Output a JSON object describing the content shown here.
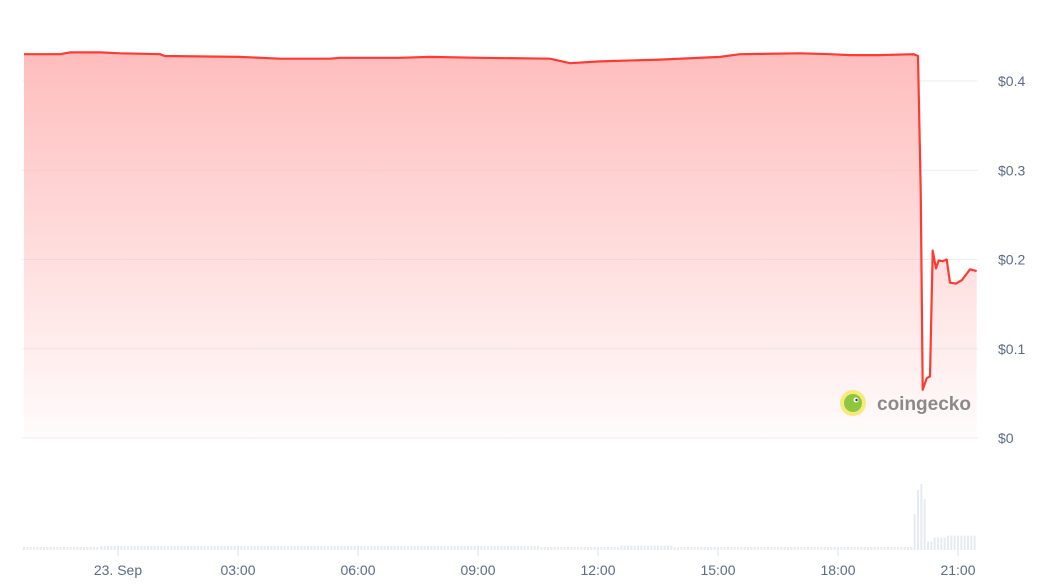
{
  "chart_data": {
    "type": "area",
    "title": "",
    "xlabel": "",
    "ylabel": "",
    "ylim": [
      0,
      0.44
    ],
    "y_ticks": [
      "$0",
      "$0.1",
      "$0.2",
      "$0.3",
      "$0.4"
    ],
    "y_tick_values": [
      0,
      0.1,
      0.2,
      0.3,
      0.4
    ],
    "x_ticks": [
      "23. Sep",
      "03:00",
      "06:00",
      "09:00",
      "12:00",
      "15:00",
      "18:00",
      "21:00"
    ],
    "x_tick_times": [
      "23 Sep 00:00",
      "23 Sep 03:00",
      "23 Sep 06:00",
      "23 Sep 09:00",
      "23 Sep 12:00",
      "23 Sep 15:00",
      "23 Sep 18:00",
      "23 Sep 21:00"
    ],
    "grid": true,
    "line_color": "#ff3a33",
    "fill_color": "#ffbdbd",
    "series": [
      {
        "points": [
          [
            "22 Sep 21:39",
            0.43
          ],
          [
            "22 Sep 22:33",
            0.43
          ],
          [
            "22 Sep 22:48",
            0.432
          ],
          [
            "22 Sep 23:33",
            0.432
          ],
          [
            "23 Sep 00:03",
            0.431
          ],
          [
            "23 Sep 01:03",
            0.43
          ],
          [
            "23 Sep 01:10",
            0.428
          ],
          [
            "23 Sep 03:03",
            0.427
          ],
          [
            "23 Sep 04:03",
            0.425
          ],
          [
            "23 Sep 05:18",
            0.425
          ],
          [
            "23 Sep 05:33",
            0.426
          ],
          [
            "23 Sep 07:03",
            0.426
          ],
          [
            "23 Sep 07:48",
            0.427
          ],
          [
            "23 Sep 09:03",
            0.426
          ],
          [
            "23 Sep 10:48",
            0.425
          ],
          [
            "23 Sep 11:18",
            0.42
          ],
          [
            "23 Sep 12:03",
            0.422
          ],
          [
            "23 Sep 13:33",
            0.424
          ],
          [
            "23 Sep 15:03",
            0.427
          ],
          [
            "23 Sep 15:33",
            0.43
          ],
          [
            "23 Sep 17:03",
            0.431
          ],
          [
            "23 Sep 17:48",
            0.43
          ],
          [
            "23 Sep 18:18",
            0.429
          ],
          [
            "23 Sep 19:03",
            0.429
          ],
          [
            "23 Sep 19:54",
            0.43
          ],
          [
            "23 Sep 20:00",
            0.428
          ],
          [
            "23 Sep 20:04",
            0.278
          ],
          [
            "23 Sep 20:07",
            0.054
          ],
          [
            "23 Sep 20:13",
            0.067
          ],
          [
            "23 Sep 20:18",
            0.069
          ],
          [
            "23 Sep 20:22",
            0.21
          ],
          [
            "23 Sep 20:27",
            0.19
          ],
          [
            "23 Sep 20:31",
            0.199
          ],
          [
            "23 Sep 20:37",
            0.198
          ],
          [
            "23 Sep 20:43",
            0.2
          ],
          [
            "23 Sep 20:48",
            0.174
          ],
          [
            "23 Sep 20:57",
            0.173
          ],
          [
            "23 Sep 21:06",
            0.177
          ],
          [
            "23 Sep 21:18",
            0.189
          ],
          [
            "23 Sep 21:28",
            0.187
          ]
        ]
      }
    ],
    "volume": {
      "color": "#e6ebf2",
      "relative_levels": [
        {
          "from": "22 Sep 21:39",
          "to": "22 Sep 23:30",
          "level": 1.0
        },
        {
          "from": "22 Sep 23:35",
          "to": "23 Sep 10:30",
          "level": 1.4
        },
        {
          "from": "23 Sep 10:35",
          "to": "23 Sep 12:30",
          "level": 1.0
        },
        {
          "from": "23 Sep 12:35",
          "to": "23 Sep 13:50",
          "level": 1.5
        },
        {
          "from": "23 Sep 13:55",
          "to": "23 Sep 19:50",
          "level": 1.0
        },
        {
          "from": "23 Sep 19:55",
          "to": "23 Sep 19:55",
          "level": 12
        },
        {
          "from": "23 Sep 20:00",
          "to": "23 Sep 20:00",
          "level": 20
        },
        {
          "from": "23 Sep 20:05",
          "to": "23 Sep 20:05",
          "level": 22
        },
        {
          "from": "23 Sep 20:10",
          "to": "23 Sep 20:10",
          "level": 17
        },
        {
          "from": "23 Sep 20:15",
          "to": "23 Sep 20:20",
          "level": 2.8
        },
        {
          "from": "23 Sep 20:25",
          "to": "23 Sep 20:40",
          "level": 4.2
        },
        {
          "from": "23 Sep 20:45",
          "to": "23 Sep 21:28",
          "level": 4.8
        }
      ]
    }
  },
  "watermark": {
    "text": "coingecko"
  }
}
